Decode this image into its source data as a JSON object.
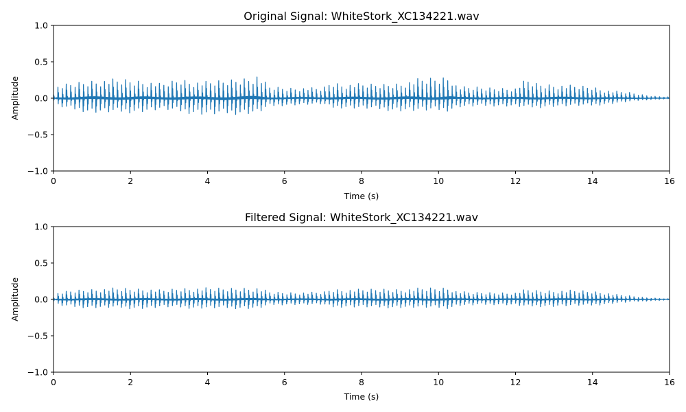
{
  "chart_data": [
    {
      "type": "line",
      "title": "Original Signal: WhiteStork_XC134221.wav",
      "xlabel": "Time (s)",
      "ylabel": "Amplitude",
      "xlim": [
        0,
        16
      ],
      "ylim": [
        -1.0,
        1.0
      ],
      "xticks": [
        "0",
        "2",
        "4",
        "6",
        "8",
        "10",
        "12",
        "14",
        "16"
      ],
      "yticks": [
        "−1.0",
        "−0.5",
        "0.0",
        "0.5",
        "1.0"
      ],
      "grid": false,
      "color": "#1f77b4",
      "envelope": {
        "t": [
          0.05,
          0.5,
          1.0,
          1.5,
          2.0,
          2.5,
          2.8,
          3.3,
          3.6,
          4.0,
          4.5,
          5.0,
          5.3,
          5.6,
          6.0,
          6.5,
          7.0,
          7.2,
          7.5,
          8.0,
          8.5,
          9.0,
          9.5,
          10.0,
          10.3,
          10.5,
          11.0,
          11.5,
          12.0,
          12.3,
          12.5,
          13.0,
          13.5,
          14.0,
          14.3,
          14.6,
          15.0,
          15.3,
          15.6,
          16.0
        ],
        "pos": [
          0.17,
          0.22,
          0.26,
          0.27,
          0.27,
          0.24,
          0.2,
          0.28,
          0.24,
          0.23,
          0.26,
          0.3,
          0.34,
          0.17,
          0.15,
          0.15,
          0.14,
          0.24,
          0.2,
          0.2,
          0.2,
          0.22,
          0.28,
          0.3,
          0.32,
          0.16,
          0.16,
          0.15,
          0.15,
          0.28,
          0.22,
          0.2,
          0.18,
          0.17,
          0.12,
          0.1,
          0.08,
          0.05,
          0.03,
          0.02
        ],
        "neg": [
          -0.12,
          -0.18,
          -0.22,
          -0.22,
          -0.22,
          -0.2,
          -0.17,
          -0.22,
          -0.24,
          -0.26,
          -0.25,
          -0.24,
          -0.24,
          -0.13,
          -0.11,
          -0.1,
          -0.09,
          -0.16,
          -0.15,
          -0.16,
          -0.18,
          -0.2,
          -0.2,
          -0.2,
          -0.2,
          -0.14,
          -0.13,
          -0.12,
          -0.13,
          -0.15,
          -0.15,
          -0.13,
          -0.12,
          -0.12,
          -0.1,
          -0.08,
          -0.05,
          -0.03,
          -0.02,
          -0.01
        ]
      }
    },
    {
      "type": "line",
      "title": "Filtered Signal: WhiteStork_XC134221.wav",
      "xlabel": "Time (s)",
      "ylabel": "Amplitude",
      "xlim": [
        0,
        16
      ],
      "ylim": [
        -1.0,
        1.0
      ],
      "xticks": [
        "0",
        "2",
        "4",
        "6",
        "8",
        "10",
        "12",
        "14",
        "16"
      ],
      "yticks": [
        "−1.0",
        "−0.5",
        "0.0",
        "0.5",
        "1.0"
      ],
      "grid": false,
      "color": "#1f77b4",
      "envelope": {
        "t": [
          0.05,
          0.5,
          1.0,
          1.5,
          2.0,
          2.5,
          2.8,
          3.3,
          3.6,
          4.0,
          4.5,
          5.0,
          5.3,
          5.6,
          6.0,
          6.5,
          7.0,
          7.2,
          7.5,
          8.0,
          8.5,
          9.0,
          9.5,
          10.0,
          10.3,
          10.5,
          11.0,
          11.5,
          12.0,
          12.3,
          12.5,
          13.0,
          13.5,
          14.0,
          14.3,
          14.6,
          15.0,
          15.3,
          15.6,
          16.0
        ],
        "pos": [
          0.09,
          0.13,
          0.15,
          0.16,
          0.16,
          0.15,
          0.13,
          0.16,
          0.16,
          0.16,
          0.16,
          0.17,
          0.17,
          0.11,
          0.1,
          0.1,
          0.1,
          0.15,
          0.14,
          0.14,
          0.15,
          0.15,
          0.16,
          0.17,
          0.17,
          0.11,
          0.1,
          0.1,
          0.1,
          0.15,
          0.13,
          0.13,
          0.13,
          0.12,
          0.1,
          0.07,
          0.05,
          0.03,
          0.02,
          0.01
        ],
        "neg": [
          -0.09,
          -0.12,
          -0.13,
          -0.13,
          -0.14,
          -0.14,
          -0.12,
          -0.13,
          -0.14,
          -0.14,
          -0.14,
          -0.14,
          -0.15,
          -0.09,
          -0.08,
          -0.08,
          -0.08,
          -0.13,
          -0.12,
          -0.12,
          -0.13,
          -0.13,
          -0.13,
          -0.14,
          -0.14,
          -0.1,
          -0.09,
          -0.08,
          -0.09,
          -0.12,
          -0.11,
          -0.11,
          -0.1,
          -0.1,
          -0.08,
          -0.06,
          -0.04,
          -0.03,
          -0.02,
          -0.01
        ]
      }
    }
  ]
}
